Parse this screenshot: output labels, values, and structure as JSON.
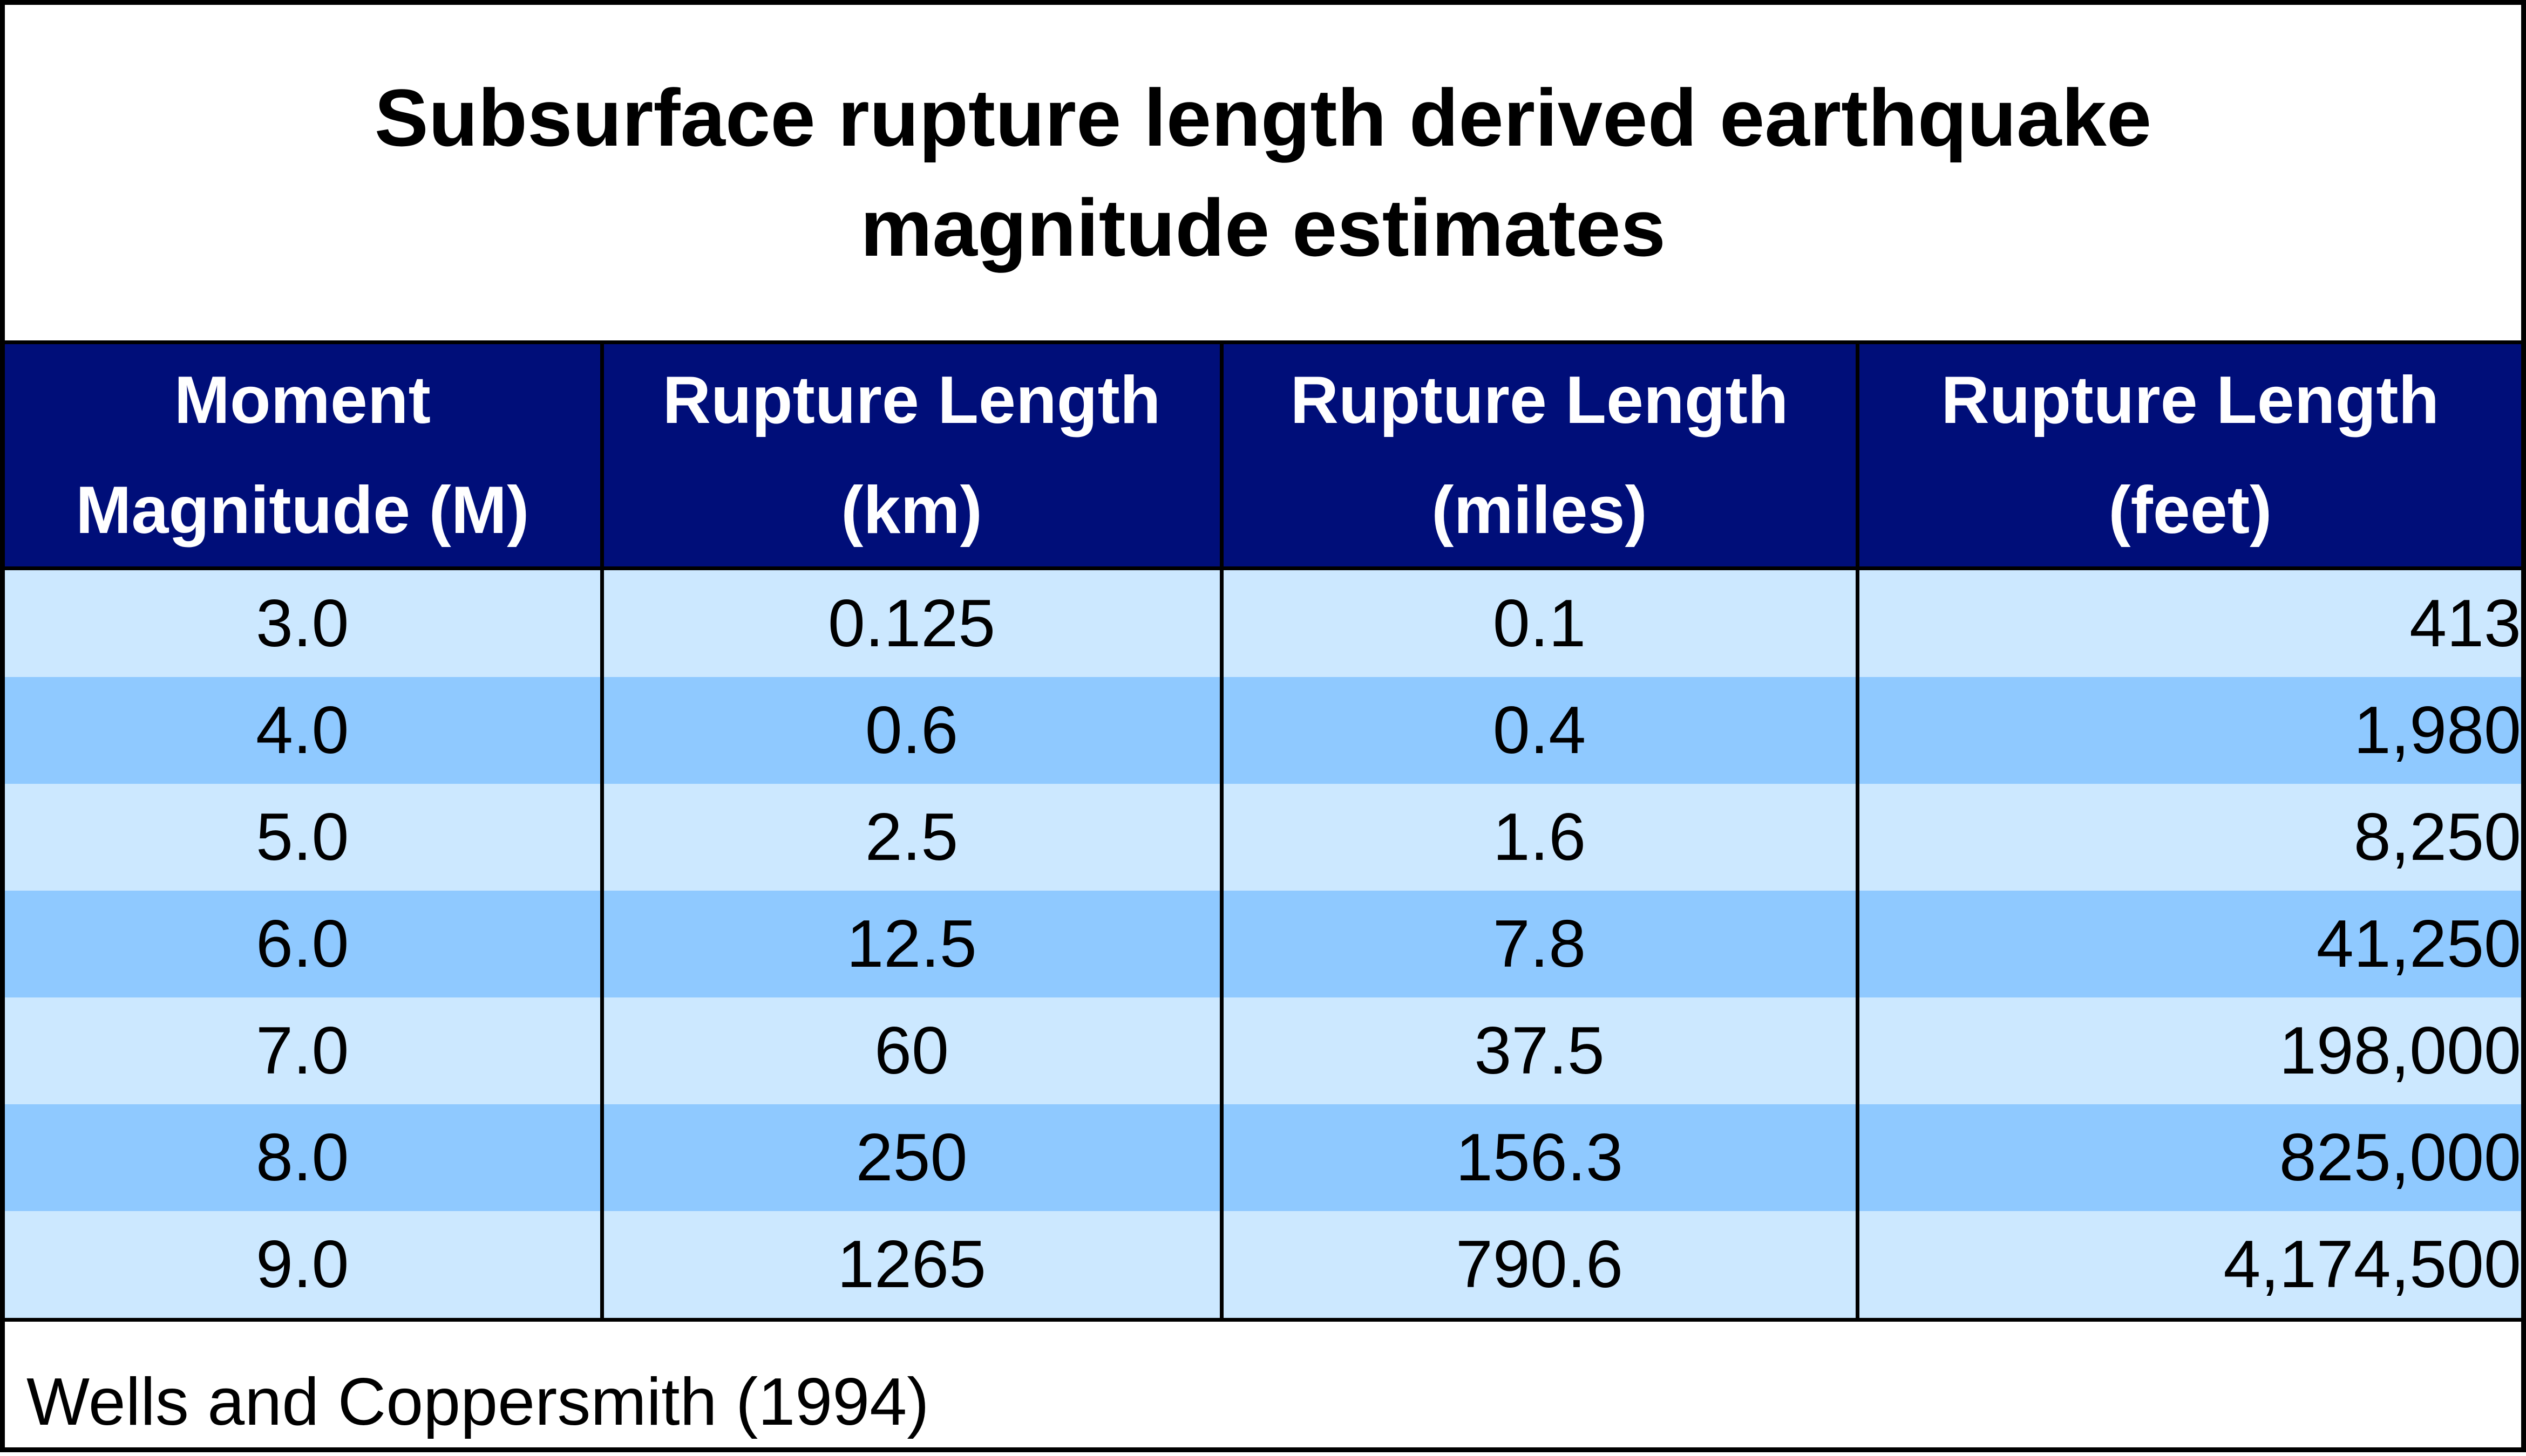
{
  "title_lines": [
    "Subsurface rupture length derived earthquake",
    "magnitude estimates"
  ],
  "table": {
    "columns": [
      {
        "lines": [
          "Moment",
          "Magnitude (M)"
        ]
      },
      {
        "lines": [
          "Rupture Length",
          "(km)"
        ]
      },
      {
        "lines": [
          "Rupture Length",
          "(miles)"
        ]
      },
      {
        "lines": [
          "Rupture Length",
          "(feet)"
        ]
      }
    ],
    "rows": [
      {
        "magnitude": "3.0",
        "km": "0.125",
        "miles": "0.1",
        "feet": "413"
      },
      {
        "magnitude": "4.0",
        "km": "0.6",
        "miles": "0.4",
        "feet": "1,980"
      },
      {
        "magnitude": "5.0",
        "km": "2.5",
        "miles": "1.6",
        "feet": "8,250"
      },
      {
        "magnitude": "6.0",
        "km": "12.5",
        "miles": "7.8",
        "feet": "41,250"
      },
      {
        "magnitude": "7.0",
        "km": "60",
        "miles": "37.5",
        "feet": "198,000"
      },
      {
        "magnitude": "8.0",
        "km": "250",
        "miles": "156.3",
        "feet": "825,000"
      },
      {
        "magnitude": "9.0",
        "km": "1265",
        "miles": "790.6",
        "feet": "4,174,500"
      }
    ]
  },
  "source": "Wells and Coppersmith (1994)",
  "colors": {
    "header_bg": "#000e79",
    "header_text": "#ffffff",
    "row_light": "#cce8ff",
    "row_dark": "#8fc9ff",
    "border": "#000000"
  }
}
